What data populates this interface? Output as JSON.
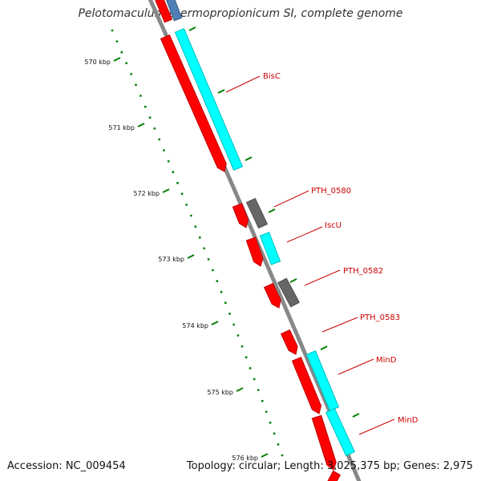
{
  "header": {
    "title": "Pelotomaculum thermopropionicum SI, complete genome"
  },
  "footer": {
    "accession": "Accession: NC_009454",
    "topology": "Topology: circular; Length: 3,025,375 bp; Genes: 2,975"
  },
  "colors": {
    "forward_gene": "#ff0000",
    "cds_feature": "#00ffff",
    "hypothetical": "#666666",
    "top_feature": "#4f7fb5",
    "backbone": "#888888",
    "tick": "#008000",
    "label": "#cc0000"
  },
  "chart_data": {
    "type": "genome-map",
    "kbp_ticks": [
      "570 kbp",
      "571 kbp",
      "572 kbp",
      "573 kbp",
      "574 kbp",
      "575 kbp",
      "576 kbp"
    ],
    "genes": [
      {
        "label": "BisC",
        "type": "red+cyan"
      },
      {
        "label": "PTH_0580",
        "type": "red+gray"
      },
      {
        "label": "IscU",
        "type": "red+cyan"
      },
      {
        "label": "PTH_0582",
        "type": "red+gray"
      },
      {
        "label": "PTH_0583",
        "type": "red"
      },
      {
        "label": "MinD",
        "type": "red+cyan"
      },
      {
        "label": "MinD",
        "type": "red+cyan"
      }
    ]
  }
}
